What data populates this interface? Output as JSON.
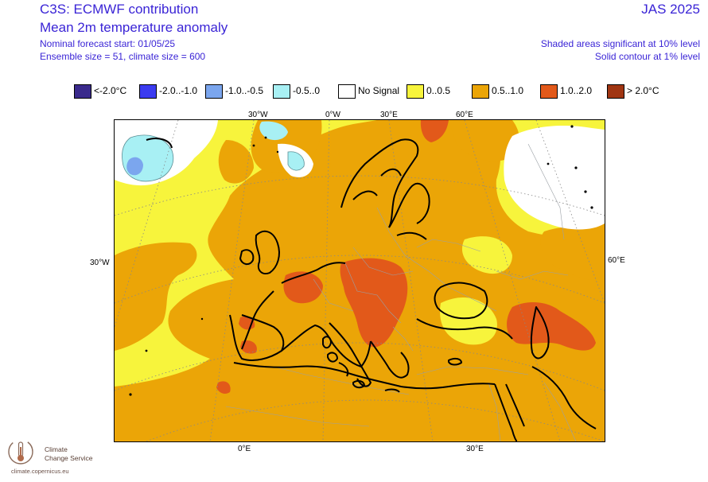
{
  "header": {
    "title": "C3S: ECMWF contribution",
    "subtitle": "Mean 2m temperature anomaly",
    "forecast_start": "Nominal forecast start: 01/05/25",
    "ensemble": "Ensemble size = 51, climate size = 600",
    "season": "JAS 2025",
    "note_significance": "Shaded areas significant at 10% level",
    "note_contour": "Solid contour at 1% level"
  },
  "legend": [
    {
      "label": "<-2.0°C",
      "color": "#3a2a8c"
    },
    {
      "label": "-2.0..-1.0",
      "color": "#3b3bf0"
    },
    {
      "label": "-1.0..-0.5",
      "color": "#7ba6ee"
    },
    {
      "label": "-0.5..0",
      "color": "#a8f0f4"
    },
    {
      "label": "No Signal",
      "color": "#ffffff"
    },
    {
      "label": "0..0.5",
      "color": "#f7f43c"
    },
    {
      "label": "0.5..1.0",
      "color": "#eba507"
    },
    {
      "label": "1.0..2.0",
      "color": "#e2591a"
    },
    {
      "label": "> 2.0°C",
      "color": "#a03512"
    }
  ],
  "axis_labels": {
    "top_30w": "30°W",
    "top_0w": "0°W",
    "top_30e": "30°E",
    "top_60e": "60°E",
    "left_30w": "30°W",
    "right_60e": "60°E",
    "bottom_0e": "0°E",
    "bottom_30e": "30°E"
  },
  "logo": {
    "line1": "Climate",
    "line2": "Change Service",
    "url": "climate.copernicus.eu"
  }
}
